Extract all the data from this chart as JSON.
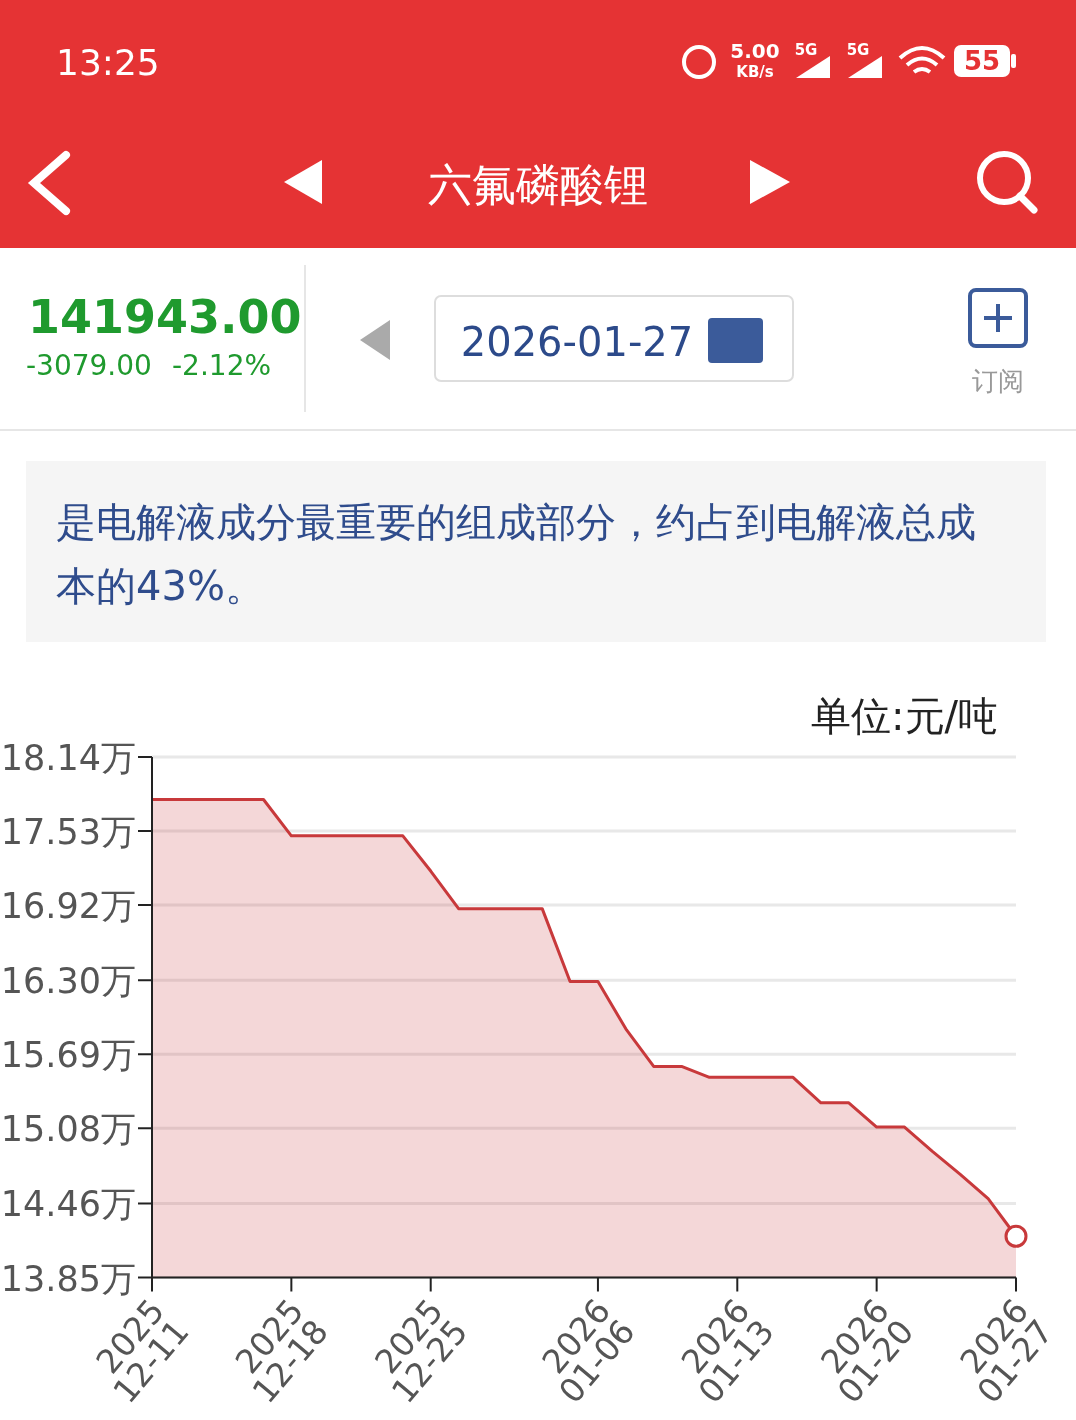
{
  "chart_data": {
    "type": "area",
    "title": "六氟磷酸锂",
    "subtitle": "是电解液成分最重要的组成部分，约占到电解液总成本的43%。",
    "ylabel": "单位:元/吨",
    "annotations": [
      "13:25",
      "5.00",
      "KB/s",
      "5G",
      "5G",
      "55",
      "141943.00",
      "-3079.00",
      "-2.12%",
      "2026-01-27",
      "订阅"
    ],
    "categories": [
      "2025\n12-11",
      null,
      null,
      null,
      null,
      "2025\n12-18",
      null,
      null,
      null,
      null,
      "2025\n12-25",
      null,
      null,
      null,
      null,
      null,
      "2026\n01-06",
      null,
      null,
      null,
      null,
      "2026\n01-13",
      null,
      null,
      null,
      null,
      "2026\n01-20",
      null,
      null,
      null,
      null,
      "2026\n01-27"
    ],
    "series": [
      {
        "color": "#c8393b",
        "values": [
          17.79,
          17.79,
          17.79,
          17.79,
          17.79,
          17.49,
          17.49,
          17.49,
          17.49,
          17.49,
          17.2,
          16.89,
          16.89,
          16.89,
          16.89,
          16.29,
          16.29,
          15.9,
          15.59,
          15.59,
          15.5,
          15.5,
          15.5,
          15.5,
          15.29,
          15.29,
          15.09,
          15.09,
          14.89,
          14.7,
          14.5,
          14.19
        ]
      },
      {
        "type": "scatter",
        "color": "#c8393b",
        "values": [
          null,
          null,
          null,
          null,
          null,
          null,
          null,
          null,
          null,
          null,
          null,
          null,
          null,
          null,
          null,
          null,
          null,
          null,
          null,
          null,
          null,
          null,
          null,
          null,
          null,
          null,
          null,
          null,
          null,
          null,
          null,
          14.19
        ]
      }
    ],
    "ylim": [
      13.85,
      18.14
    ],
    "yticks": [
      {
        "value": 13.85,
        "label": "13.85万"
      },
      {
        "value": 14.46,
        "label": "14.46万"
      },
      {
        "value": 15.08,
        "label": "15.08万"
      },
      {
        "value": 15.69,
        "label": "15.69万"
      },
      {
        "value": 16.3,
        "label": "16.30万"
      },
      {
        "value": 16.92,
        "label": "16.92万"
      },
      {
        "value": 17.53,
        "label": "17.53万"
      },
      {
        "value": 18.14,
        "label": "18.14万"
      }
    ],
    "grid": "y"
  }
}
